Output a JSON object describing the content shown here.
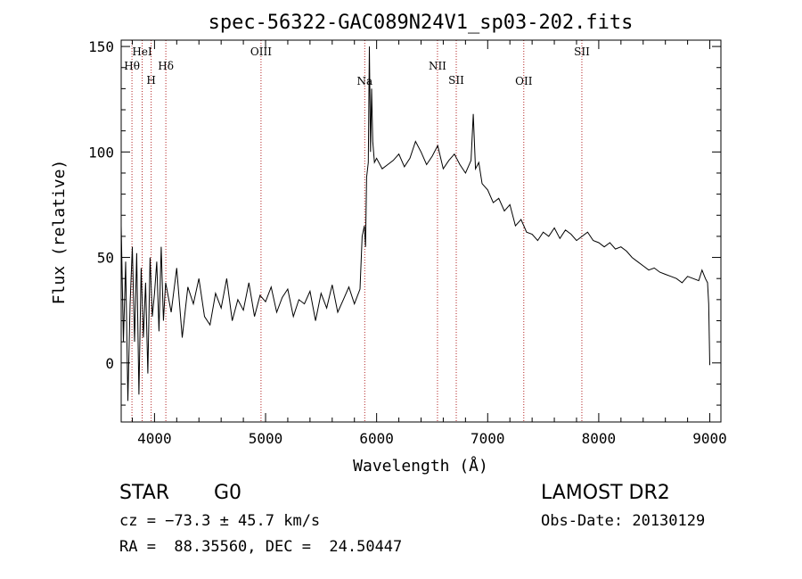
{
  "chart_data": {
    "type": "line",
    "title": "spec-56322-GAC089N24V1_sp03-202.fits",
    "xlabel": "Wavelength (Å)",
    "ylabel": "Flux (relative)",
    "xlim": [
      3700,
      9100
    ],
    "ylim": [
      -28,
      153
    ],
    "xticks": [
      4000,
      5000,
      6000,
      7000,
      8000,
      9000
    ],
    "yticks": [
      0,
      50,
      100,
      150
    ],
    "line_color": "#000000",
    "marker_color": "#b22222",
    "series": [
      {
        "x": [
          3700,
          3720,
          3740,
          3760,
          3780,
          3800,
          3820,
          3840,
          3860,
          3880,
          3900,
          3920,
          3940,
          3960,
          3980,
          4000,
          4020,
          4040,
          4060,
          4080,
          4100,
          4150,
          4200,
          4250,
          4300,
          4350,
          4400,
          4450,
          4500,
          4550,
          4600,
          4650,
          4700,
          4750,
          4800,
          4850,
          4900,
          4950,
          5000,
          5050,
          5100,
          5150,
          5200,
          5250,
          5300,
          5350,
          5400,
          5450,
          5500,
          5550,
          5600,
          5650,
          5700,
          5750,
          5800,
          5850,
          5870,
          5890,
          5900,
          5910,
          5925,
          5935,
          5945,
          5955,
          5965,
          5980,
          6000,
          6050,
          6100,
          6150,
          6200,
          6250,
          6300,
          6350,
          6400,
          6450,
          6500,
          6550,
          6600,
          6650,
          6700,
          6750,
          6800,
          6850,
          6870,
          6890,
          6920,
          6950,
          7000,
          7050,
          7100,
          7150,
          7200,
          7250,
          7300,
          7350,
          7400,
          7450,
          7500,
          7550,
          7600,
          7650,
          7700,
          7750,
          7800,
          7850,
          7900,
          7950,
          8000,
          8050,
          8100,
          8150,
          8200,
          8250,
          8300,
          8350,
          8400,
          8450,
          8500,
          8550,
          8600,
          8650,
          8700,
          8750,
          8800,
          8850,
          8900,
          8930,
          8960,
          8980,
          8990,
          9000
        ],
        "values": [
          65,
          10,
          48,
          -18,
          28,
          55,
          10,
          52,
          -15,
          45,
          12,
          38,
          -5,
          50,
          22,
          33,
          48,
          15,
          55,
          20,
          38,
          24,
          45,
          12,
          36,
          28,
          40,
          22,
          18,
          33,
          26,
          40,
          20,
          30,
          25,
          38,
          22,
          32,
          29,
          36,
          24,
          31,
          35,
          22,
          30,
          28,
          34,
          20,
          33,
          26,
          37,
          24,
          30,
          36,
          28,
          35,
          60,
          65,
          55,
          88,
          95,
          150,
          100,
          130,
          105,
          95,
          97,
          92,
          94,
          96,
          99,
          93,
          97,
          105,
          100,
          94,
          98,
          103,
          92,
          96,
          99,
          94,
          90,
          96,
          118,
          92,
          95,
          85,
          82,
          76,
          78,
          72,
          75,
          65,
          68,
          62,
          61,
          58,
          62,
          60,
          64,
          59,
          63,
          61,
          58,
          60,
          62,
          58,
          57,
          55,
          57,
          54,
          55,
          53,
          50,
          48,
          46,
          44,
          45,
          43,
          42,
          41,
          40,
          38,
          41,
          40,
          39,
          44,
          40,
          38,
          28,
          -1
        ]
      }
    ],
    "annotations": [
      {
        "label": "Hθ",
        "x": 3797,
        "row": 2
      },
      {
        "label": "HeI",
        "x": 3889,
        "row": 1
      },
      {
        "label": "H",
        "x": 3970,
        "row": 3
      },
      {
        "label": "Hδ",
        "x": 4102,
        "row": 2
      },
      {
        "label": "OIII",
        "x": 4959,
        "row": 1
      },
      {
        "label": "Na",
        "x": 5893,
        "row": 4
      },
      {
        "label": "NII",
        "x": 6548,
        "row": 2
      },
      {
        "label": "SII",
        "x": 6717,
        "row": 3
      },
      {
        "label": "OII",
        "x": 7325,
        "row": 4
      },
      {
        "label": "SII",
        "x": 7848,
        "row": 1
      }
    ]
  },
  "info": {
    "class": "STAR",
    "subclass": "G0",
    "survey": "LAMOST DR2",
    "cz": "cz = −73.3 ± 45.7 km/s",
    "obs_date": "Obs-Date: 20130129",
    "radec": "RA =  88.35560, DEC =  24.50447"
  }
}
